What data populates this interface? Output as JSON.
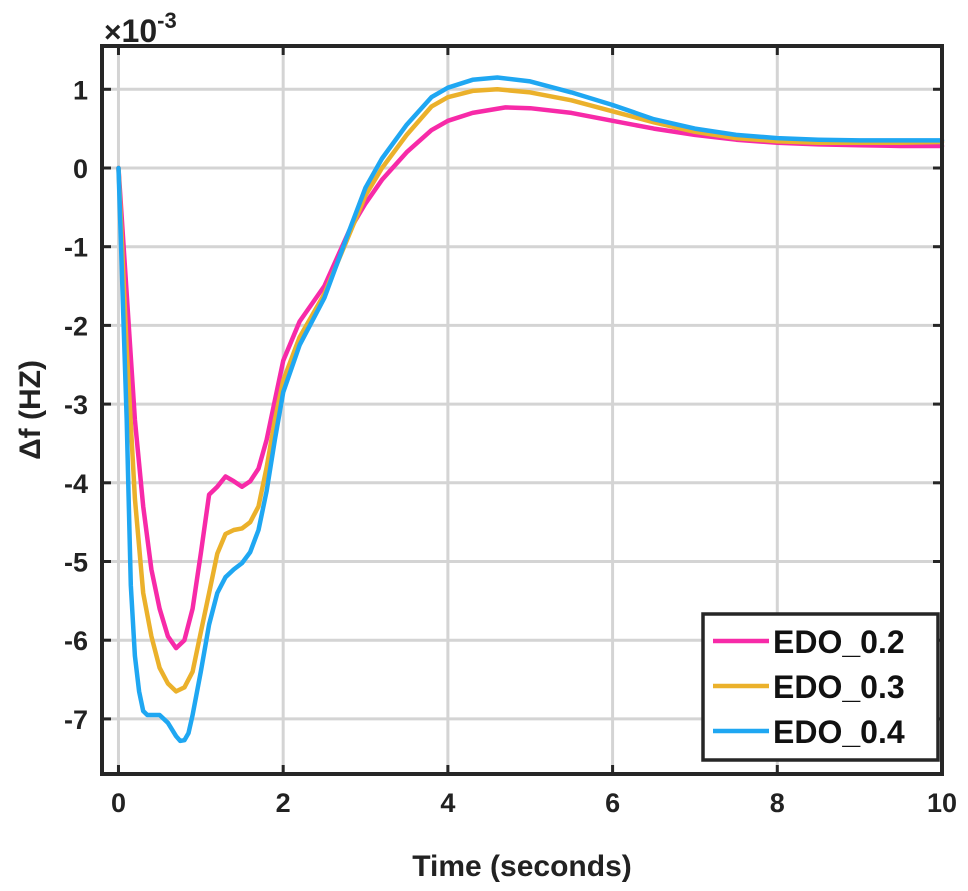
{
  "chart_data": {
    "type": "line",
    "title": "",
    "xlabel": "Time (seconds)",
    "ylabel": "Δf (HZ)",
    "y_multiplier": {
      "base": "10",
      "exponent": "-3",
      "symbol": "×"
    },
    "xlim": [
      -0.2,
      10.0
    ],
    "ylim": [
      -7.7,
      1.55
    ],
    "xticks": [
      0,
      2,
      4,
      6,
      8,
      10
    ],
    "xtick_labels": [
      "0",
      "2",
      "4",
      "6",
      "8",
      "10"
    ],
    "yticks": [
      1,
      0,
      -1,
      -2,
      -3,
      -4,
      -5,
      -6,
      -7
    ],
    "ytick_labels": [
      "1",
      "0",
      "-1",
      "-2",
      "-3",
      "-4",
      "-5",
      "-6",
      "-7"
    ],
    "grid": true,
    "legend_position": "bottom-right",
    "series": [
      {
        "name": "EDO_0.2",
        "color": "#F72AA8",
        "points": [
          [
            0,
            0
          ],
          [
            0.1,
            -1.6
          ],
          [
            0.2,
            -3.2
          ],
          [
            0.3,
            -4.3
          ],
          [
            0.4,
            -5.1
          ],
          [
            0.5,
            -5.6
          ],
          [
            0.6,
            -5.95
          ],
          [
            0.7,
            -6.1
          ],
          [
            0.8,
            -6.0
          ],
          [
            0.9,
            -5.6
          ],
          [
            1.0,
            -4.9
          ],
          [
            1.1,
            -4.15
          ],
          [
            1.2,
            -4.05
          ],
          [
            1.3,
            -3.92
          ],
          [
            1.4,
            -3.98
          ],
          [
            1.5,
            -4.05
          ],
          [
            1.6,
            -3.98
          ],
          [
            1.7,
            -3.82
          ],
          [
            1.8,
            -3.45
          ],
          [
            1.9,
            -2.95
          ],
          [
            2.0,
            -2.45
          ],
          [
            2.2,
            -1.95
          ],
          [
            2.5,
            -1.5
          ],
          [
            2.8,
            -0.8
          ],
          [
            3.0,
            -0.45
          ],
          [
            3.2,
            -0.15
          ],
          [
            3.5,
            0.2
          ],
          [
            3.8,
            0.48
          ],
          [
            4.0,
            0.6
          ],
          [
            4.3,
            0.7
          ],
          [
            4.7,
            0.77
          ],
          [
            5.0,
            0.76
          ],
          [
            5.5,
            0.7
          ],
          [
            6.0,
            0.6
          ],
          [
            6.5,
            0.5
          ],
          [
            7.0,
            0.42
          ],
          [
            7.5,
            0.36
          ],
          [
            8.0,
            0.32
          ],
          [
            8.5,
            0.3
          ],
          [
            9.0,
            0.29
          ],
          [
            9.5,
            0.28
          ],
          [
            10.0,
            0.28
          ]
        ]
      },
      {
        "name": "EDO_0.3",
        "color": "#EBB12B",
        "points": [
          [
            0,
            0
          ],
          [
            0.1,
            -2.3
          ],
          [
            0.2,
            -4.2
          ],
          [
            0.3,
            -5.4
          ],
          [
            0.4,
            -5.95
          ],
          [
            0.5,
            -6.35
          ],
          [
            0.6,
            -6.55
          ],
          [
            0.7,
            -6.65
          ],
          [
            0.8,
            -6.6
          ],
          [
            0.9,
            -6.4
          ],
          [
            1.0,
            -5.9
          ],
          [
            1.1,
            -5.4
          ],
          [
            1.2,
            -4.9
          ],
          [
            1.3,
            -4.65
          ],
          [
            1.4,
            -4.6
          ],
          [
            1.5,
            -4.58
          ],
          [
            1.6,
            -4.5
          ],
          [
            1.7,
            -4.3
          ],
          [
            1.8,
            -3.8
          ],
          [
            1.9,
            -3.2
          ],
          [
            2.0,
            -2.7
          ],
          [
            2.2,
            -2.15
          ],
          [
            2.5,
            -1.6
          ],
          [
            2.8,
            -0.85
          ],
          [
            3.0,
            -0.35
          ],
          [
            3.2,
            0.0
          ],
          [
            3.5,
            0.42
          ],
          [
            3.8,
            0.78
          ],
          [
            4.0,
            0.9
          ],
          [
            4.3,
            0.98
          ],
          [
            4.6,
            1.0
          ],
          [
            5.0,
            0.96
          ],
          [
            5.5,
            0.86
          ],
          [
            6.0,
            0.72
          ],
          [
            6.5,
            0.58
          ],
          [
            7.0,
            0.46
          ],
          [
            7.5,
            0.38
          ],
          [
            8.0,
            0.34
          ],
          [
            8.5,
            0.32
          ],
          [
            9.0,
            0.32
          ],
          [
            9.5,
            0.32
          ],
          [
            10.0,
            0.33
          ]
        ]
      },
      {
        "name": "EDO_0.4",
        "color": "#1FA7F2",
        "points": [
          [
            0,
            0
          ],
          [
            0.1,
            -3.2
          ],
          [
            0.15,
            -5.3
          ],
          [
            0.2,
            -6.2
          ],
          [
            0.25,
            -6.65
          ],
          [
            0.3,
            -6.9
          ],
          [
            0.35,
            -6.95
          ],
          [
            0.4,
            -6.95
          ],
          [
            0.5,
            -6.95
          ],
          [
            0.6,
            -7.05
          ],
          [
            0.7,
            -7.22
          ],
          [
            0.75,
            -7.28
          ],
          [
            0.8,
            -7.27
          ],
          [
            0.85,
            -7.18
          ],
          [
            0.9,
            -6.95
          ],
          [
            1.0,
            -6.4
          ],
          [
            1.1,
            -5.8
          ],
          [
            1.2,
            -5.4
          ],
          [
            1.3,
            -5.2
          ],
          [
            1.4,
            -5.1
          ],
          [
            1.5,
            -5.02
          ],
          [
            1.6,
            -4.88
          ],
          [
            1.7,
            -4.6
          ],
          [
            1.8,
            -4.1
          ],
          [
            1.9,
            -3.45
          ],
          [
            2.0,
            -2.85
          ],
          [
            2.2,
            -2.25
          ],
          [
            2.5,
            -1.65
          ],
          [
            2.8,
            -0.8
          ],
          [
            3.0,
            -0.25
          ],
          [
            3.2,
            0.12
          ],
          [
            3.5,
            0.55
          ],
          [
            3.8,
            0.9
          ],
          [
            4.0,
            1.02
          ],
          [
            4.3,
            1.12
          ],
          [
            4.6,
            1.15
          ],
          [
            5.0,
            1.1
          ],
          [
            5.5,
            0.96
          ],
          [
            6.0,
            0.8
          ],
          [
            6.5,
            0.62
          ],
          [
            7.0,
            0.5
          ],
          [
            7.5,
            0.42
          ],
          [
            8.0,
            0.38
          ],
          [
            8.5,
            0.36
          ],
          [
            9.0,
            0.35
          ],
          [
            9.5,
            0.35
          ],
          [
            10.0,
            0.35
          ]
        ]
      }
    ]
  }
}
